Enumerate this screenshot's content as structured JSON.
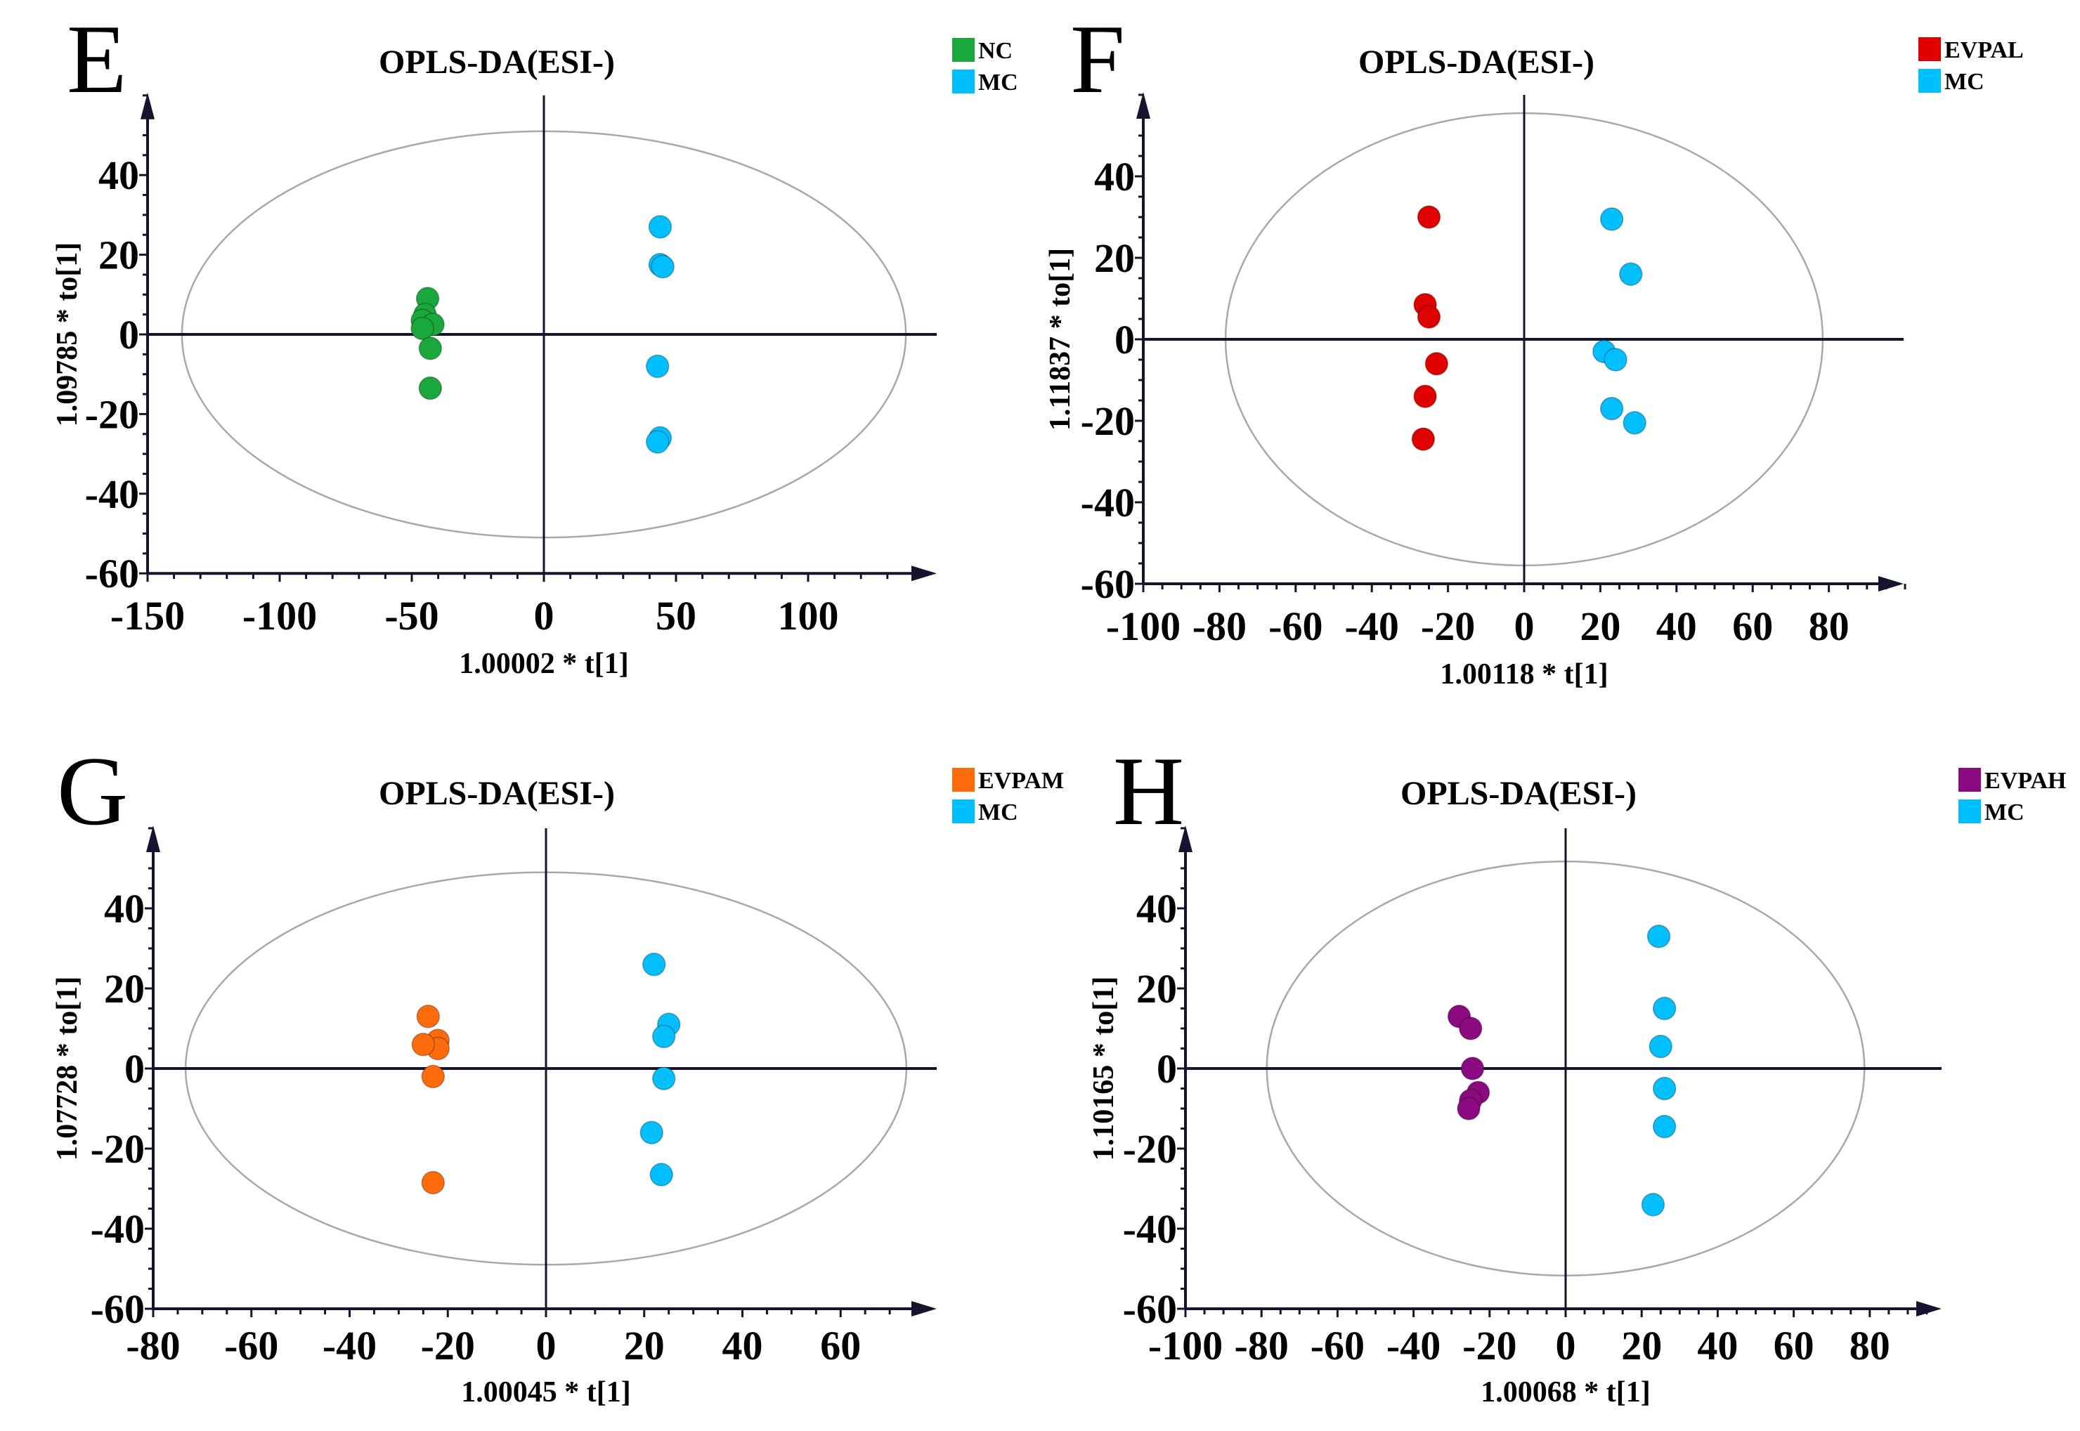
{
  "chart_data": [
    {
      "type": "scatter",
      "panel_letter": "E",
      "title": "OPLS-DA(ESI-)",
      "xlabel": "1.00002 * t[1]",
      "ylabel": "1.09785 * to[1]",
      "xlim": [
        -150,
        149
      ],
      "ylim": [
        -60,
        60
      ],
      "xticks": [
        -150,
        -100,
        -50,
        0,
        50,
        100
      ],
      "yticks": [
        -60,
        -40,
        -20,
        0,
        20,
        40
      ],
      "x_minor_step": 10,
      "y_minor_step": 5,
      "ellipse_radii": [
        137,
        51
      ],
      "legend_position": "top-right",
      "series": [
        {
          "name": "NC",
          "color": "#1aa83c",
          "points": [
            [
              -44,
              9
            ],
            [
              -45,
              5
            ],
            [
              -46,
              3.5
            ],
            [
              -42,
              2.5
            ],
            [
              -46,
              1.5
            ],
            [
              -43,
              -3.5
            ],
            [
              -43,
              -13.5
            ]
          ]
        },
        {
          "name": "MC",
          "color": "#00bfff",
          "points": [
            [
              44,
              27
            ],
            [
              44,
              17.5
            ],
            [
              45,
              17
            ],
            [
              43,
              -8
            ],
            [
              44,
              -26
            ],
            [
              43,
              -27
            ]
          ]
        }
      ]
    },
    {
      "type": "scatter",
      "panel_letter": "F",
      "title": "OPLS-DA(ESI-)",
      "xlabel": "1.00118 * t[1]",
      "ylabel": "1.11837 * to[1]",
      "xlim": [
        -100,
        100
      ],
      "ylim": [
        -60,
        60
      ],
      "xticks": [
        -100,
        -80,
        -60,
        -40,
        -20,
        0,
        20,
        40,
        60,
        80
      ],
      "yticks": [
        -60,
        -40,
        -20,
        0,
        20,
        40
      ],
      "x_minor_step": 5,
      "y_minor_step": 5,
      "ellipse_radii": [
        78.4,
        55.5
      ],
      "legend_position": "top-right",
      "series": [
        {
          "name": "EVPAL",
          "color": "#e00000",
          "points": [
            [
              -25,
              30
            ],
            [
              -26,
              8.5
            ],
            [
              -25,
              5.5
            ],
            [
              -23,
              -6
            ],
            [
              -26,
              -14
            ],
            [
              -26.5,
              -24.5
            ]
          ]
        },
        {
          "name": "MC",
          "color": "#00bfff",
          "points": [
            [
              23,
              29.5
            ],
            [
              28,
              16
            ],
            [
              21,
              -3
            ],
            [
              24,
              -5
            ],
            [
              23,
              -17
            ],
            [
              29,
              -20.5
            ]
          ]
        }
      ]
    },
    {
      "type": "scatter",
      "panel_letter": "G",
      "title": "OPLS-DA(ESI-)",
      "xlabel": "1.00045 * t[1]",
      "ylabel": "1.07728 * to[1]",
      "xlim": [
        -80,
        79.5
      ],
      "ylim": [
        -60,
        60
      ],
      "xticks": [
        -80,
        -60,
        -40,
        -20,
        0,
        20,
        40,
        60
      ],
      "yticks": [
        -60,
        -40,
        -20,
        0,
        20,
        40
      ],
      "x_minor_step": 5,
      "y_minor_step": 5,
      "ellipse_radii": [
        73.4,
        49
      ],
      "legend_position": "top-right",
      "series": [
        {
          "name": "EVPAM",
          "color": "#ff6a0a",
          "points": [
            [
              -24,
              13
            ],
            [
              -22,
              7
            ],
            [
              -22,
              5
            ],
            [
              -25,
              6
            ],
            [
              -23,
              -2
            ],
            [
              -23,
              -28.5
            ]
          ]
        },
        {
          "name": "MC",
          "color": "#00bfff",
          "points": [
            [
              22,
              26
            ],
            [
              25,
              11
            ],
            [
              24,
              8
            ],
            [
              24,
              -2.5
            ],
            [
              21.5,
              -16
            ],
            [
              23.5,
              -26.5
            ]
          ]
        }
      ]
    },
    {
      "type": "scatter",
      "panel_letter": "H",
      "title": "OPLS-DA(ESI-)",
      "xlabel": "1.00068 * t[1]",
      "ylabel": "1.10165 * to[1]",
      "xlim": [
        -100,
        99
      ],
      "ylim": [
        -60,
        60
      ],
      "xticks": [
        -100,
        -80,
        -60,
        -40,
        -20,
        0,
        20,
        40,
        60,
        80
      ],
      "yticks": [
        -60,
        -40,
        -20,
        0,
        20,
        40
      ],
      "x_minor_step": 5,
      "y_minor_step": 5,
      "ellipse_radii": [
        78.6,
        51.7
      ],
      "legend_position": "top-right",
      "series": [
        {
          "name": "EVPAH",
          "color": "#8b0a80",
          "points": [
            [
              -28,
              13
            ],
            [
              -25,
              10
            ],
            [
              -24.5,
              0
            ],
            [
              -23,
              -6
            ],
            [
              -25,
              -8
            ],
            [
              -25.5,
              -10
            ]
          ]
        },
        {
          "name": "MC",
          "color": "#00bfff",
          "points": [
            [
              24.5,
              33
            ],
            [
              26,
              15
            ],
            [
              25,
              5.5
            ],
            [
              26,
              -5
            ],
            [
              26,
              -14.5
            ],
            [
              23,
              -34
            ]
          ]
        }
      ]
    }
  ]
}
